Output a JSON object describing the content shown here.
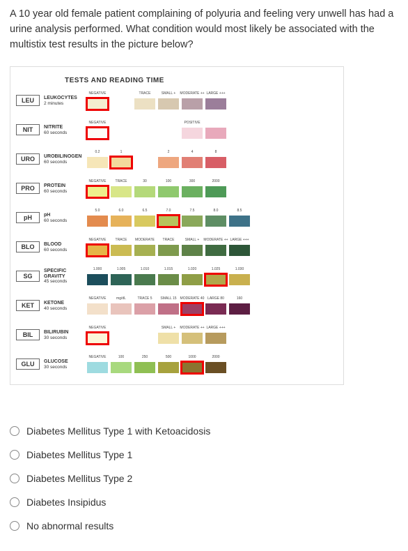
{
  "question_text": "A 10 year old female patient complaining of polyuria and feeling very unwell has had a urine analysis performed. What condition would most likely be associated with the multistix test results in the picture below?",
  "chart_heading": "TESTS AND READING TIME",
  "rows": [
    {
      "abbr": "LEU",
      "name": "LEUKOCYTES",
      "sub": "2 minutes",
      "swatches": [
        {
          "label": "NEGATIVE",
          "color": "#f4eecf",
          "sel": true
        },
        {
          "label": "",
          "color": "",
          "sel": false
        },
        {
          "label": "TRACE",
          "color": "#ece0c3",
          "sel": false
        },
        {
          "label": "SMALL +",
          "color": "#d7c8b0",
          "sel": false
        },
        {
          "label": "MODERATE ++",
          "color": "#b9a0a8",
          "sel": false
        },
        {
          "label": "LARGE +++",
          "color": "#9b7e9a",
          "sel": false
        }
      ]
    },
    {
      "abbr": "NIT",
      "name": "NITRITE",
      "sub": "60 seconds",
      "swatches": [
        {
          "label": "NEGATIVE",
          "color": "#fdfdf5",
          "sel": true
        },
        {
          "label": "",
          "color": "",
          "sel": false
        },
        {
          "label": "",
          "color": "",
          "sel": false
        },
        {
          "label": "",
          "color": "",
          "sel": false
        },
        {
          "label": "POSITIVE",
          "color": "#f5d6de",
          "sel": false
        },
        {
          "label": "",
          "color": "#e8a9bb",
          "sel": false
        }
      ]
    },
    {
      "abbr": "URO",
      "name": "UROBILINOGEN",
      "sub": "60 seconds",
      "swatches": [
        {
          "label": "0.2",
          "color": "#f6e6b8",
          "sel": false
        },
        {
          "label": "1",
          "color": "#f3d99c",
          "sel": true
        },
        {
          "label": "",
          "color": "",
          "sel": false
        },
        {
          "label": "2",
          "color": "#eea77f",
          "sel": false
        },
        {
          "label": "4",
          "color": "#e17f74",
          "sel": false
        },
        {
          "label": "8",
          "color": "#d85e66",
          "sel": false
        }
      ]
    },
    {
      "abbr": "PRO",
      "name": "PROTEIN",
      "sub": "60 seconds",
      "swatches": [
        {
          "label": "NEGATIVE",
          "color": "#eef08c",
          "sel": true
        },
        {
          "label": "TRACE",
          "color": "#d8e688",
          "sel": false
        },
        {
          "label": "30",
          "color": "#b4d97a",
          "sel": false
        },
        {
          "label": "100",
          "color": "#8fc96e",
          "sel": false
        },
        {
          "label": "300",
          "color": "#6bb060",
          "sel": false
        },
        {
          "label": "2000",
          "color": "#4e9a57",
          "sel": false
        }
      ]
    },
    {
      "abbr": "pH",
      "name": "pH",
      "sub": "60 seconds",
      "swatches": [
        {
          "label": "5.0",
          "color": "#e38b4e",
          "sel": false
        },
        {
          "label": "6.0",
          "color": "#e6b25a",
          "sel": false
        },
        {
          "label": "6.5",
          "color": "#d8c95f",
          "sel": false
        },
        {
          "label": "7.0",
          "color": "#b7c45c",
          "sel": true
        },
        {
          "label": "7.5",
          "color": "#8aa85a",
          "sel": false
        },
        {
          "label": "8.0",
          "color": "#5e8e64",
          "sel": false
        },
        {
          "label": "8.5",
          "color": "#3e7288",
          "sel": false
        }
      ]
    },
    {
      "abbr": "BLO",
      "name": "BLOOD",
      "sub": "60 seconds",
      "swatches": [
        {
          "label": "NEGATIVE",
          "color": "#e6b547",
          "sel": true
        },
        {
          "label": "TRACE",
          "color": "#cbbb52",
          "sel": false
        },
        {
          "label": "MODERATE",
          "color": "#a6b051",
          "sel": false
        },
        {
          "label": "TRACE",
          "color": "#7e9a4d",
          "sel": false
        },
        {
          "label": "SMALL +",
          "color": "#5e8248",
          "sel": false
        },
        {
          "label": "MODERATE ++",
          "color": "#3f6b41",
          "sel": false
        },
        {
          "label": "LARGE +++",
          "color": "#2d5638",
          "sel": false
        }
      ]
    },
    {
      "abbr": "SG",
      "name": "SPECIFIC GRAVITY",
      "sub": "45 seconds",
      "swatches": [
        {
          "label": "1.000",
          "color": "#1c4e5c",
          "sel": false
        },
        {
          "label": "1.005",
          "color": "#2e6457",
          "sel": false
        },
        {
          "label": "1.010",
          "color": "#4a7a4e",
          "sel": false
        },
        {
          "label": "1.015",
          "color": "#6b8d48",
          "sel": false
        },
        {
          "label": "1.020",
          "color": "#8f9e46",
          "sel": false
        },
        {
          "label": "1.025",
          "color": "#b1a74a",
          "sel": true
        },
        {
          "label": "1.030",
          "color": "#c9b04e",
          "sel": false
        }
      ]
    },
    {
      "abbr": "KET",
      "name": "KETONE",
      "sub": "40 seconds",
      "swatches": [
        {
          "label": "NEGATIVE",
          "color": "#f3e0ca",
          "sel": false
        },
        {
          "label": "mg/dL",
          "color": "#e9c4bc",
          "sel": false
        },
        {
          "label": "TRACE 5",
          "color": "#dba0a7",
          "sel": false
        },
        {
          "label": "SMALL 15",
          "color": "#c07087",
          "sel": false
        },
        {
          "label": "MODERATE 40",
          "color": "#9c3f64",
          "sel": true
        },
        {
          "label": "LARGE 80",
          "color": "#7a2b53",
          "sel": false
        },
        {
          "label": "160",
          "color": "#5d1e43",
          "sel": false
        }
      ]
    },
    {
      "abbr": "BIL",
      "name": "BILIRUBIN",
      "sub": "30 seconds",
      "swatches": [
        {
          "label": "NEGATIVE",
          "color": "#fcf6d8",
          "sel": true
        },
        {
          "label": "",
          "color": "",
          "sel": false
        },
        {
          "label": "",
          "color": "",
          "sel": false
        },
        {
          "label": "SMALL +",
          "color": "#efe0a8",
          "sel": false
        },
        {
          "label": "MODERATE ++",
          "color": "#d5c07a",
          "sel": false
        },
        {
          "label": "LARGE +++",
          "color": "#b79b5e",
          "sel": false
        }
      ]
    },
    {
      "abbr": "GLU",
      "name": "GLUCOSE",
      "sub": "30 seconds",
      "swatches": [
        {
          "label": "NEGATIVE",
          "color": "#9edbe0",
          "sel": false
        },
        {
          "label": "100",
          "color": "#a8d97e",
          "sel": false
        },
        {
          "label": "250",
          "color": "#8fbf53",
          "sel": false
        },
        {
          "label": "500",
          "color": "#a7a23d",
          "sel": false
        },
        {
          "label": "1000",
          "color": "#8b7430",
          "sel": true
        },
        {
          "label": "2000",
          "color": "#6a4f24",
          "sel": false
        }
      ]
    }
  ],
  "answers": [
    "Diabetes Mellitus Type 1 with Ketoacidosis",
    "Diabetes Mellitus Type 1",
    "Diabetes Mellitus Type 2",
    "Diabetes Insipidus",
    "No abnormal results"
  ]
}
